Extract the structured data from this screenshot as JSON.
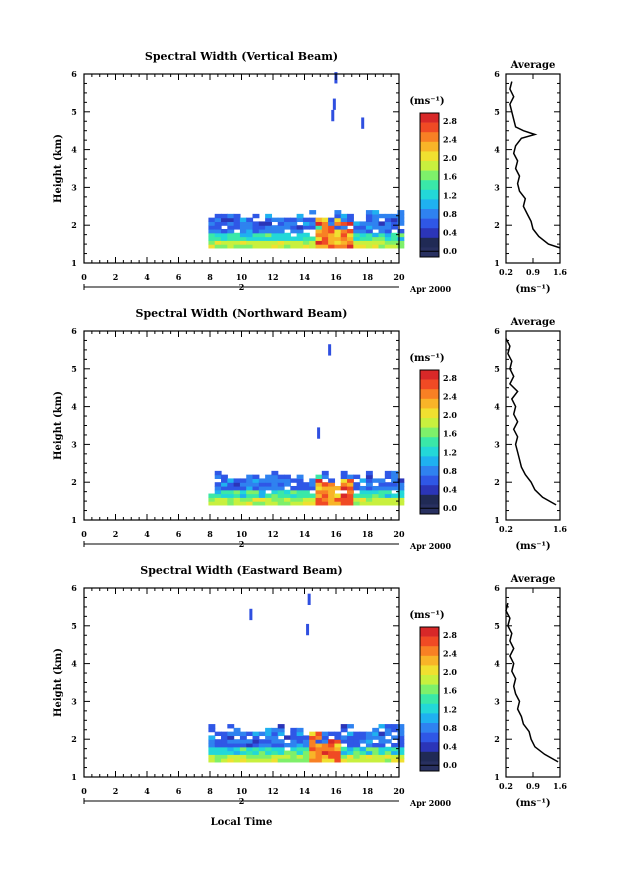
{
  "panels": [
    {
      "title": "Spectral Width (Vertical Beam)",
      "ylabel": "Height (km)",
      "xticks": [
        "0",
        "2",
        "4",
        "6",
        "8",
        "10",
        "12",
        "14",
        "16",
        "18",
        "20"
      ],
      "yticks": [
        "1",
        "2",
        "3",
        "4",
        "5",
        "6"
      ],
      "day": "2",
      "date_label": "Apr 2000",
      "cbar_unit": "(ms⁻¹)",
      "cbar_ticks": [
        "2.8",
        "2.4",
        "2.0",
        "1.6",
        "1.2",
        "0.8",
        "0.4",
        "0.0"
      ],
      "avg_title": "Average",
      "avg_xticks": [
        "0.2",
        "0.9",
        "1.6"
      ],
      "avg_yticks": [
        "1",
        "2",
        "3",
        "4",
        "5",
        "6"
      ],
      "avg_xlabel": "(ms⁻¹)"
    },
    {
      "title": "Spectral Width (Northward Beam)",
      "ylabel": "Height (km)",
      "xticks": [
        "0",
        "2",
        "4",
        "6",
        "8",
        "10",
        "12",
        "14",
        "16",
        "18",
        "20"
      ],
      "yticks": [
        "1",
        "2",
        "3",
        "4",
        "5",
        "6"
      ],
      "day": "2",
      "date_label": "Apr 2000",
      "cbar_unit": "(ms⁻¹)",
      "cbar_ticks": [
        "2.8",
        "2.4",
        "2.0",
        "1.6",
        "1.2",
        "0.8",
        "0.4",
        "0.0"
      ],
      "avg_title": "Average",
      "avg_xticks": [
        "0.2",
        "1.6"
      ],
      "avg_yticks": [
        "1",
        "2",
        "3",
        "4",
        "5",
        "6"
      ],
      "avg_xlabel": "(ms⁻¹)"
    },
    {
      "title": "Spectral Width (Eastward Beam)",
      "ylabel": "Height (km)",
      "xticks": [
        "0",
        "2",
        "4",
        "6",
        "8",
        "10",
        "12",
        "14",
        "16",
        "18",
        "20"
      ],
      "yticks": [
        "1",
        "2",
        "3",
        "4",
        "5",
        "6"
      ],
      "day": "2",
      "date_label": "Apr 2000",
      "cbar_unit": "(ms⁻¹)",
      "cbar_ticks": [
        "2.8",
        "2.4",
        "2.0",
        "1.6",
        "1.2",
        "0.8",
        "0.4",
        "0.0"
      ],
      "avg_title": "Average",
      "avg_xticks": [
        "0.2",
        "0.9",
        "1.6"
      ],
      "avg_yticks": [
        "1",
        "2",
        "3",
        "4",
        "5",
        "6"
      ],
      "avg_xlabel": "(ms⁻¹)"
    }
  ],
  "xlabel": "Local Time",
  "chart_data": [
    {
      "type": "heatmap",
      "title": "Spectral Width (Vertical Beam)",
      "xlabel": "",
      "ylabel": "Height (km)",
      "xlim": [
        0,
        20
      ],
      "ylim": [
        1,
        6
      ],
      "colorbar": {
        "unit": "(ms⁻¹)",
        "range": [
          0.0,
          3.0
        ]
      },
      "data_region": {
        "x_start": 7.9,
        "x_end": 20,
        "height_top_km": 2.4,
        "height_bottom_km": 1.4
      },
      "high_values_near": {
        "x": [
          14.5,
          17
        ],
        "value": 2.8
      },
      "isolated_echoes": [
        {
          "x": 15.9,
          "y": 5.9
        },
        {
          "x": 15.8,
          "y": 5.2
        },
        {
          "x": 15.7,
          "y": 4.9
        },
        {
          "x": 17.6,
          "y": 4.7
        }
      ],
      "average_profile": {
        "xlim": [
          0.2,
          1.6
        ],
        "height": [
          1.4,
          1.5,
          1.7,
          1.9,
          2.1,
          2.3,
          2.5,
          2.7,
          2.9,
          3.1,
          3.3,
          3.5,
          3.7,
          3.9,
          4.1,
          4.3,
          4.4,
          4.5,
          4.6,
          4.8,
          5.0,
          5.2,
          5.4,
          5.6,
          5.8
        ],
        "value": [
          1.6,
          1.3,
          1.05,
          0.9,
          0.85,
          0.75,
          0.65,
          0.7,
          0.55,
          0.5,
          0.55,
          0.45,
          0.5,
          0.4,
          0.45,
          0.6,
          0.95,
          0.65,
          0.45,
          0.4,
          0.35,
          0.3,
          0.4,
          0.3,
          0.35
        ]
      }
    },
    {
      "type": "heatmap",
      "title": "Spectral Width (Northward Beam)",
      "xlabel": "",
      "ylabel": "Height (km)",
      "xlim": [
        0,
        20
      ],
      "ylim": [
        1,
        6
      ],
      "colorbar": {
        "unit": "(ms⁻¹)",
        "range": [
          0.0,
          3.0
        ]
      },
      "data_region": {
        "x_start": 7.9,
        "x_end": 20,
        "height_top_km": 2.3,
        "height_bottom_km": 1.4
      },
      "high_values_near": {
        "x": [
          14.5,
          17
        ],
        "value": 2.8
      },
      "isolated_echoes": [
        {
          "x": 15.5,
          "y": 5.5
        },
        {
          "x": 14.8,
          "y": 3.3
        }
      ],
      "average_profile": {
        "xlim": [
          0.2,
          1.6
        ],
        "height": [
          1.4,
          1.6,
          1.8,
          2.0,
          2.2,
          2.4,
          2.6,
          2.8,
          3.0,
          3.2,
          3.4,
          3.6,
          3.8,
          4.0,
          4.2,
          4.4,
          4.6,
          4.8,
          5.0,
          5.2,
          5.4,
          5.6,
          5.8
        ],
        "value": [
          1.5,
          1.15,
          0.95,
          0.85,
          0.7,
          0.6,
          0.55,
          0.5,
          0.45,
          0.5,
          0.4,
          0.5,
          0.4,
          0.45,
          0.35,
          0.5,
          0.3,
          0.4,
          0.3,
          0.35,
          0.25,
          0.3,
          0.2
        ]
      }
    },
    {
      "type": "heatmap",
      "title": "Spectral Width (Eastward Beam)",
      "xlabel": "Local Time",
      "ylabel": "Height (km)",
      "xlim": [
        0,
        20
      ],
      "ylim": [
        1,
        6
      ],
      "colorbar": {
        "unit": "(ms⁻¹)",
        "range": [
          0.0,
          3.0
        ]
      },
      "data_region": {
        "x_start": 7.9,
        "x_end": 20,
        "height_top_km": 2.4,
        "height_bottom_km": 1.4
      },
      "high_values_near": {
        "x": [
          14.2,
          16
        ],
        "value": 2.6
      },
      "isolated_echoes": [
        {
          "x": 10.5,
          "y": 5.3
        },
        {
          "x": 14.2,
          "y": 5.7
        },
        {
          "x": 14.1,
          "y": 4.9
        }
      ],
      "average_profile": {
        "xlim": [
          0.2,
          1.6
        ],
        "height": [
          1.4,
          1.6,
          1.8,
          2.0,
          2.2,
          2.4,
          2.6,
          2.8,
          3.0,
          3.2,
          3.4,
          3.6,
          3.8,
          4.0,
          4.2,
          4.4,
          4.6,
          4.8,
          5.0,
          5.2,
          5.4,
          5.6
        ],
        "value": [
          1.55,
          1.2,
          0.95,
          0.85,
          0.8,
          0.65,
          0.6,
          0.5,
          0.55,
          0.45,
          0.4,
          0.45,
          0.35,
          0.4,
          0.3,
          0.4,
          0.3,
          0.35,
          0.25,
          0.3,
          0.2,
          0.25
        ]
      }
    }
  ]
}
